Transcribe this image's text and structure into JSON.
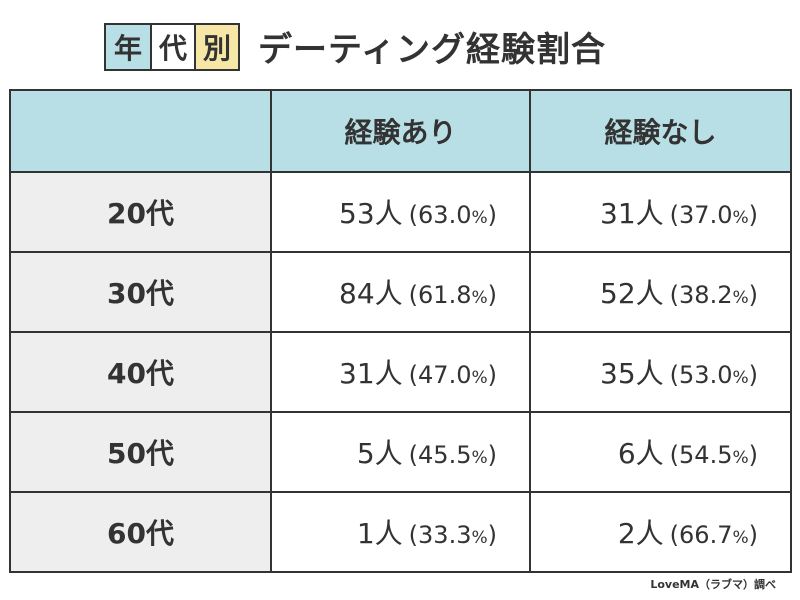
{
  "title": {
    "badges": [
      {
        "text": "年",
        "color": "#b9dfe6"
      },
      {
        "text": "代",
        "color": "#ffffff"
      },
      {
        "text": "別",
        "color": "#f6e7a6"
      }
    ],
    "text": "デーティング経験割合"
  },
  "chart_data": {
    "type": "table",
    "columns": [
      "",
      "経験あり",
      "経験なし"
    ],
    "rows": [
      {
        "label": "20代",
        "with": {
          "count": "53人",
          "pct": "63.0"
        },
        "without": {
          "count": "31人",
          "pct": "37.0"
        }
      },
      {
        "label": "30代",
        "with": {
          "count": "84人",
          "pct": "61.8"
        },
        "without": {
          "count": "52人",
          "pct": "38.2"
        }
      },
      {
        "label": "40代",
        "with": {
          "count": "31人",
          "pct": "47.0"
        },
        "without": {
          "count": "35人",
          "pct": "53.0"
        }
      },
      {
        "label": "50代",
        "with": {
          "count": "5人",
          "pct": "45.5"
        },
        "without": {
          "count": "6人",
          "pct": "54.5"
        }
      },
      {
        "label": "60代",
        "with": {
          "count": "1人",
          "pct": "33.3"
        },
        "without": {
          "count": "2人",
          "pct": "66.7"
        }
      }
    ],
    "pct_open": "(",
    "pct_symbol": "%",
    "pct_close": ")"
  },
  "colors": {
    "header_bg": "#b9dfe6",
    "row_label_bg": "#eeeeee",
    "border": "#333333"
  },
  "credit": "LoveMA（ラブマ）調べ"
}
